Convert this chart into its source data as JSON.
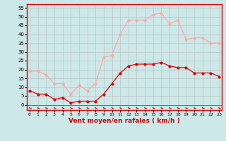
{
  "x": [
    0,
    1,
    2,
    3,
    4,
    5,
    6,
    7,
    8,
    9,
    10,
    11,
    12,
    13,
    14,
    15,
    16,
    17,
    18,
    19,
    20,
    21,
    22,
    23
  ],
  "wind_avg": [
    8,
    6,
    6,
    3,
    4,
    1,
    2,
    2,
    2,
    6,
    12,
    18,
    22,
    23,
    23,
    23,
    24,
    22,
    21,
    21,
    18,
    18,
    18,
    16
  ],
  "wind_gust": [
    19,
    19,
    17,
    12,
    12,
    6,
    11,
    8,
    12,
    27,
    28,
    40,
    48,
    48,
    48,
    51,
    52,
    46,
    48,
    37,
    38,
    38,
    35,
    35
  ],
  "background": "#cce8e8",
  "grid_color": "#bbbbbb",
  "avg_color": "#dd0000",
  "gust_color": "#ffaaaa",
  "xlabel": "Vent moyen/en rafales ( km/h )",
  "xlabel_color": "#cc0000",
  "yticks": [
    0,
    5,
    10,
    15,
    20,
    25,
    30,
    35,
    40,
    45,
    50,
    55
  ],
  "ylim": [
    -3,
    57
  ],
  "xlim": [
    -0.3,
    23.3
  ],
  "arrow_color": "#cc0000"
}
